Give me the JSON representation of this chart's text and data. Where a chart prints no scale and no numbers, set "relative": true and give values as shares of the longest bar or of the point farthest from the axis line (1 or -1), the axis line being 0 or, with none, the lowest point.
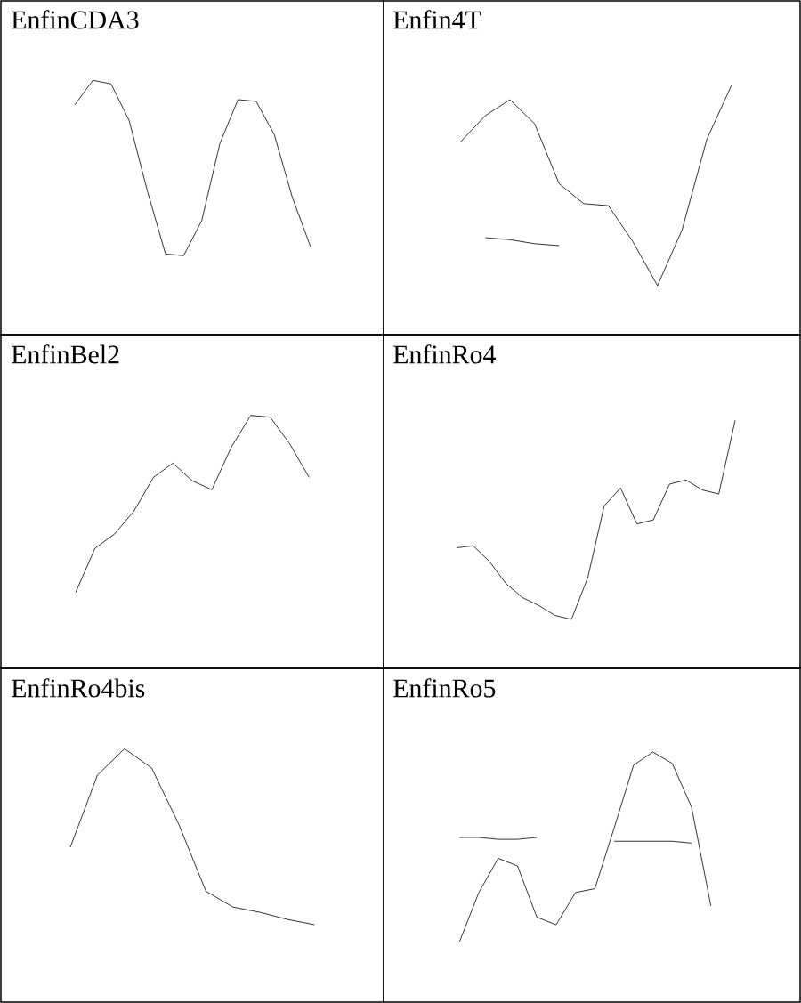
{
  "chart_data": [
    {
      "type": "line",
      "title": "EnfinCDA3",
      "relative": true,
      "categories": [
        null,
        null,
        null,
        null,
        null,
        null,
        null,
        null,
        null,
        null,
        null,
        null,
        null,
        null
      ],
      "series": [
        {
          "color": "#000000",
          "values": [
            0.86,
            1,
            0.98,
            0.77,
            0.37,
            0.01,
            0,
            0.2,
            0.64,
            0.89,
            0.88,
            0.69,
            0.33,
            0.05
          ]
        }
      ]
    },
    {
      "type": "line",
      "title": "Enfin4T",
      "relative": true,
      "categories": [
        null,
        null,
        null,
        null,
        null,
        null,
        null,
        null,
        null,
        null,
        null,
        null
      ],
      "series": [
        {
          "color": "#000000",
          "values": [
            0.72,
            0.85,
            0.93,
            0.81,
            0.51,
            0.41,
            0.4,
            0.22,
            0,
            0.28,
            0.73,
            1
          ]
        },
        {
          "color": "#000000",
          "values": [
            null,
            0.24,
            0.23,
            0.21,
            0.2,
            null,
            null,
            null,
            null,
            null,
            null,
            null
          ]
        }
      ]
    },
    {
      "type": "line",
      "title": "EnfinBel2",
      "relative": true,
      "categories": [
        null,
        null,
        null,
        null,
        null,
        null,
        null,
        null,
        null,
        null,
        null,
        null,
        null
      ],
      "series": [
        {
          "color": "#000000",
          "values": [
            0,
            0.25,
            0.33,
            0.46,
            0.65,
            0.73,
            0.63,
            0.58,
            0.82,
            1,
            0.99,
            0.84,
            0.65
          ]
        }
      ]
    },
    {
      "type": "line",
      "title": "EnfinRo4",
      "relative": true,
      "categories": [
        null,
        null,
        null,
        null,
        null,
        null,
        null,
        null,
        null,
        null,
        null,
        null,
        null,
        null,
        null,
        null,
        null,
        null
      ],
      "series": [
        {
          "color": "#000000",
          "values": [
            0.36,
            0.37,
            0.29,
            0.18,
            0.11,
            0.07,
            0.02,
            0,
            0.21,
            0.57,
            0.66,
            0.48,
            0.5,
            0.68,
            0.7,
            0.65,
            0.63,
            1
          ]
        }
      ]
    },
    {
      "type": "line",
      "title": "EnfinRo4bis",
      "relative": true,
      "categories": [
        null,
        null,
        null,
        null,
        null,
        null,
        null,
        null,
        null,
        null
      ],
      "series": [
        {
          "color": "#000000",
          "values": [
            0.44,
            0.85,
            1,
            0.89,
            0.57,
            0.19,
            0.1,
            0.07,
            0.03,
            0
          ]
        }
      ]
    },
    {
      "type": "line",
      "title": "EnfinRo5",
      "relative": true,
      "categories": [
        null,
        null,
        null,
        null,
        null,
        null,
        null,
        null,
        null,
        null,
        null,
        null,
        null,
        null
      ],
      "series": [
        {
          "color": "#000000",
          "values": [
            0,
            0.26,
            0.44,
            0.4,
            0.13,
            0.09,
            0.26,
            0.28,
            0.6,
            0.93,
            1,
            0.94,
            0.71,
            0.19
          ]
        },
        {
          "color": "#000000",
          "values": [
            0.55,
            0.55,
            0.54,
            0.54,
            0.55,
            null,
            null,
            null,
            null,
            null,
            null,
            null,
            null,
            null
          ]
        },
        {
          "color": "#000000",
          "values": [
            null,
            null,
            null,
            null,
            null,
            null,
            null,
            null,
            0.53,
            0.53,
            0.53,
            0.53,
            0.52,
            null
          ]
        }
      ]
    }
  ]
}
